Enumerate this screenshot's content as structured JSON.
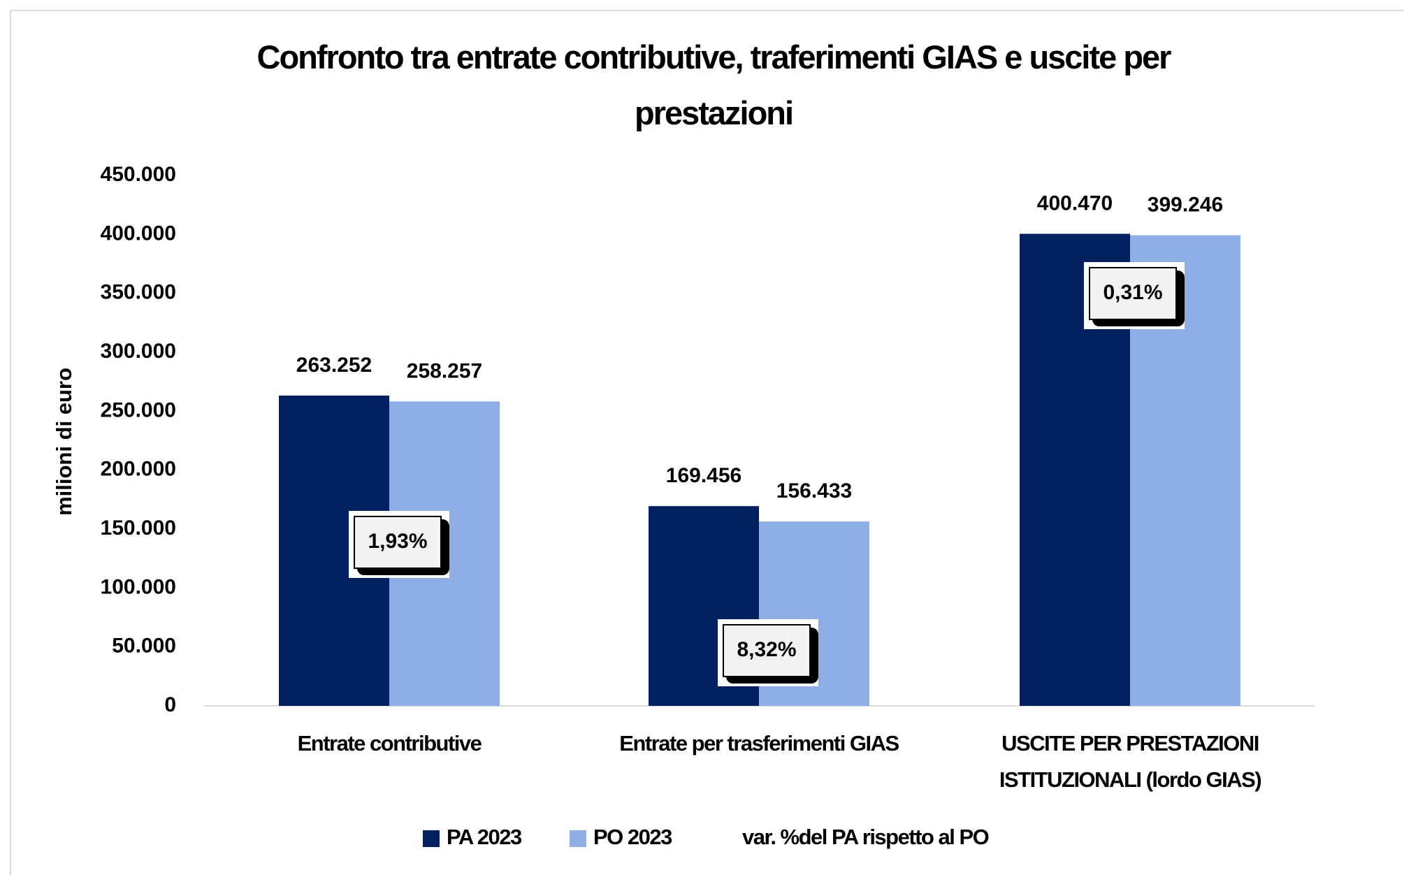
{
  "chart_data": {
    "type": "bar",
    "title": "Confronto tra entrate contributive, traferimenti GIAS e uscite per prestazioni",
    "ylabel": "milioni di euro",
    "categories": [
      "Entrate contributive",
      "Entrate per trasferimenti GIAS",
      "USCITE PER PRESTAZIONI ISTITUZIONALI (lordo GIAS)"
    ],
    "series": [
      {
        "name": "PA 2023",
        "color": "#002060",
        "values": [
          263252,
          169456,
          400470
        ],
        "value_labels": [
          "263.252",
          "169.456",
          "400.470"
        ]
      },
      {
        "name": "PO 2023",
        "color": "#8eaee6",
        "values": [
          258257,
          156433,
          399246
        ],
        "value_labels": [
          "258.257",
          "156.433",
          "399.246"
        ]
      }
    ],
    "annotation_series": {
      "name": "var. %del PA rispetto al PO",
      "values": [
        1.93,
        8.32,
        0.31
      ],
      "value_labels": [
        "1,93%",
        "8,32%",
        "0,31%"
      ]
    },
    "ylim": [
      0,
      450000
    ],
    "yticks": [
      0,
      {
        "value": 50000,
        "label": "50.000"
      },
      {
        "value": 100000,
        "label": "100.000"
      },
      {
        "value": 150000,
        "label": "150.000"
      },
      {
        "value": 200000,
        "label": "200.000"
      },
      {
        "value": 250000,
        "label": "250.000"
      },
      {
        "value": 300000,
        "label": "300.000"
      },
      {
        "value": 350000,
        "label": "350.000"
      },
      {
        "value": 400000,
        "label": "400.000"
      },
      {
        "value": 450000,
        "label": "450.000"
      }
    ],
    "grid": false,
    "legend": "bottom"
  }
}
